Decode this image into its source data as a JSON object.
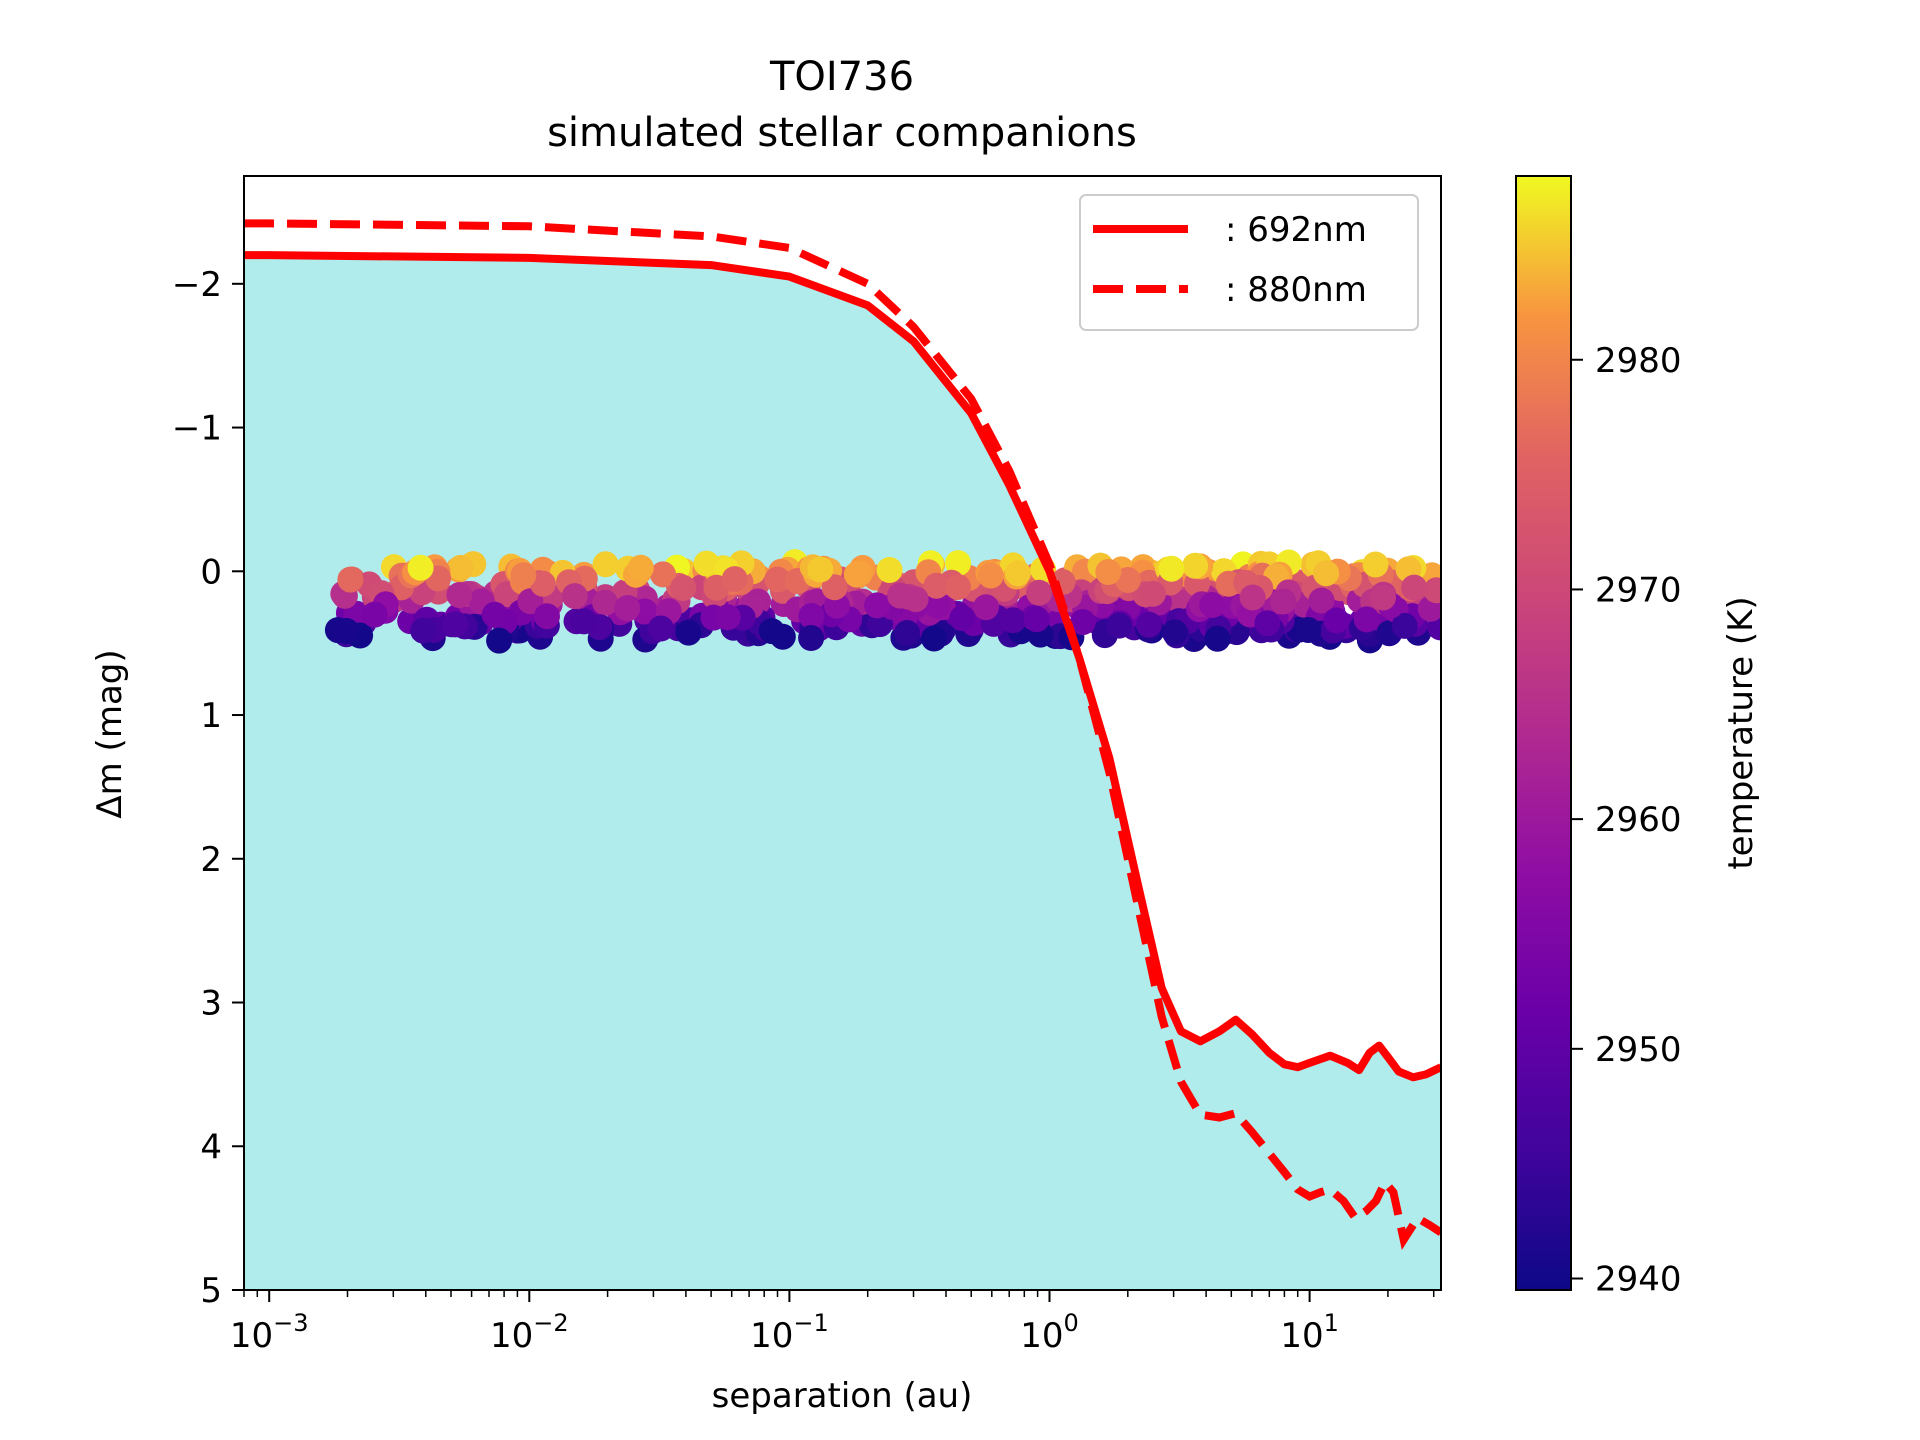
{
  "chart_data": {
    "type": "scatter",
    "title": "TOI736",
    "subtitle": "simulated stellar companions",
    "xlabel": "separation (au)",
    "ylabel": "Δm (mag)",
    "xscale": "log",
    "xlim": [
      0.0008,
      32
    ],
    "ylim": [
      -2.75,
      5
    ],
    "y_inverted": true,
    "x_ticks": [
      {
        "value": 0.001,
        "base": "10",
        "exp": "−3"
      },
      {
        "value": 0.01,
        "base": "10",
        "exp": "−2"
      },
      {
        "value": 0.1,
        "base": "10",
        "exp": "−1"
      },
      {
        "value": 1,
        "base": "10",
        "exp": "0"
      },
      {
        "value": 10,
        "base": "10",
        "exp": "1"
      }
    ],
    "y_ticks": [
      {
        "value": -2,
        "label": "−2"
      },
      {
        "value": -1,
        "label": "−1"
      },
      {
        "value": 0,
        "label": "0"
      },
      {
        "value": 1,
        "label": "1"
      },
      {
        "value": 2,
        "label": "2"
      },
      {
        "value": 3,
        "label": "3"
      },
      {
        "value": 4,
        "label": "4"
      },
      {
        "value": 5,
        "label": "5"
      }
    ],
    "fill_color": "#b0ecec",
    "line_color": "#ff0000",
    "series": [
      {
        "name": "692nm",
        "legend_label": ": 692nm",
        "style": "solid",
        "points": [
          [
            0.0008,
            -2.2
          ],
          [
            0.001,
            -2.2
          ],
          [
            0.01,
            -2.18
          ],
          [
            0.05,
            -2.13
          ],
          [
            0.1,
            -2.05
          ],
          [
            0.2,
            -1.85
          ],
          [
            0.3,
            -1.6
          ],
          [
            0.5,
            -1.1
          ],
          [
            0.7,
            -0.6
          ],
          [
            1.0,
            0.0
          ],
          [
            1.3,
            0.6
          ],
          [
            1.7,
            1.3
          ],
          [
            2.2,
            2.2
          ],
          [
            2.7,
            2.9
          ],
          [
            3.2,
            3.2
          ],
          [
            3.8,
            3.27
          ],
          [
            4.5,
            3.2
          ],
          [
            5.2,
            3.12
          ],
          [
            6.0,
            3.22
          ],
          [
            7.0,
            3.35
          ],
          [
            8.0,
            3.43
          ],
          [
            9.0,
            3.45
          ],
          [
            10.0,
            3.42
          ],
          [
            12.0,
            3.37
          ],
          [
            14.0,
            3.42
          ],
          [
            15.5,
            3.47
          ],
          [
            17.0,
            3.35
          ],
          [
            18.5,
            3.3
          ],
          [
            20.0,
            3.38
          ],
          [
            22.0,
            3.48
          ],
          [
            25.0,
            3.52
          ],
          [
            28.0,
            3.5
          ],
          [
            32.0,
            3.45
          ]
        ]
      },
      {
        "name": "880nm",
        "legend_label": ": 880nm",
        "style": "dashed",
        "points": [
          [
            0.0008,
            -2.42
          ],
          [
            0.001,
            -2.42
          ],
          [
            0.01,
            -2.4
          ],
          [
            0.05,
            -2.33
          ],
          [
            0.1,
            -2.25
          ],
          [
            0.2,
            -2.0
          ],
          [
            0.3,
            -1.7
          ],
          [
            0.5,
            -1.2
          ],
          [
            0.7,
            -0.7
          ],
          [
            1.0,
            -0.05
          ],
          [
            1.3,
            0.6
          ],
          [
            1.7,
            1.4
          ],
          [
            2.2,
            2.35
          ],
          [
            2.7,
            3.1
          ],
          [
            3.2,
            3.55
          ],
          [
            3.8,
            3.78
          ],
          [
            4.5,
            3.8
          ],
          [
            5.2,
            3.77
          ],
          [
            6.0,
            3.9
          ],
          [
            7.0,
            4.05
          ],
          [
            8.0,
            4.18
          ],
          [
            9.0,
            4.3
          ],
          [
            10.0,
            4.35
          ],
          [
            11.0,
            4.32
          ],
          [
            12.0,
            4.3
          ],
          [
            13.5,
            4.38
          ],
          [
            15.0,
            4.5
          ],
          [
            16.5,
            4.45
          ],
          [
            18.0,
            4.38
          ],
          [
            19.5,
            4.25
          ],
          [
            21.0,
            4.32
          ],
          [
            23.0,
            4.65
          ],
          [
            26.0,
            4.5
          ],
          [
            29.0,
            4.55
          ],
          [
            32.0,
            4.6
          ]
        ]
      }
    ],
    "scatter": {
      "colormap": "plasma",
      "x_range": [
        0.0018,
        32
      ],
      "dm_range": [
        -0.05,
        0.45
      ]
    },
    "colorbar": {
      "label": "temperature (K)",
      "range": [
        2939.5,
        2988
      ],
      "ticks": [
        {
          "value": 2940,
          "label": "2940"
        },
        {
          "value": 2950,
          "label": "2950"
        },
        {
          "value": 2960,
          "label": "2960"
        },
        {
          "value": 2970,
          "label": "2970"
        },
        {
          "value": 2980,
          "label": "2980"
        }
      ]
    }
  }
}
